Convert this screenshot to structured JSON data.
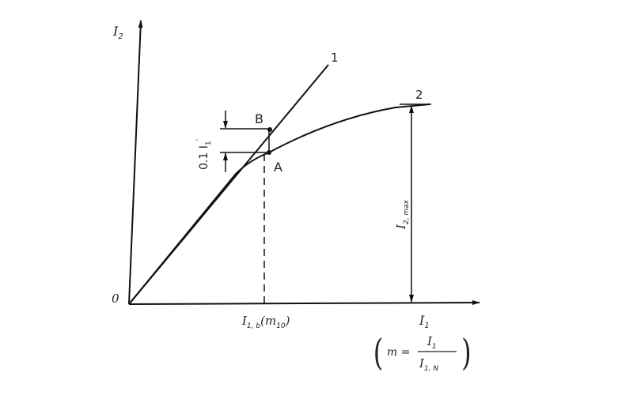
{
  "diagram": {
    "y_axis_label": "I",
    "y_axis_sub": "2",
    "x_axis_label": "I",
    "x_axis_sub": "1",
    "origin_label": "0",
    "curve1_label": "1",
    "curve2_label": "2",
    "point_b_label": "B",
    "point_a_label": "A",
    "delta_label": "0.1 I",
    "delta_sub": "1",
    "delta_sup": "′",
    "imax_label": "I",
    "imax_sub": "2, max",
    "ib_label": "I",
    "ib_sub": "1, b",
    "ib_paren": "(m",
    "ib_paren_sub": "10",
    "ib_paren_close": ")",
    "formula_m": "m =",
    "formula_num": "I",
    "formula_num_sub": "1",
    "formula_den": "I",
    "formula_den_sub": "1, N"
  }
}
